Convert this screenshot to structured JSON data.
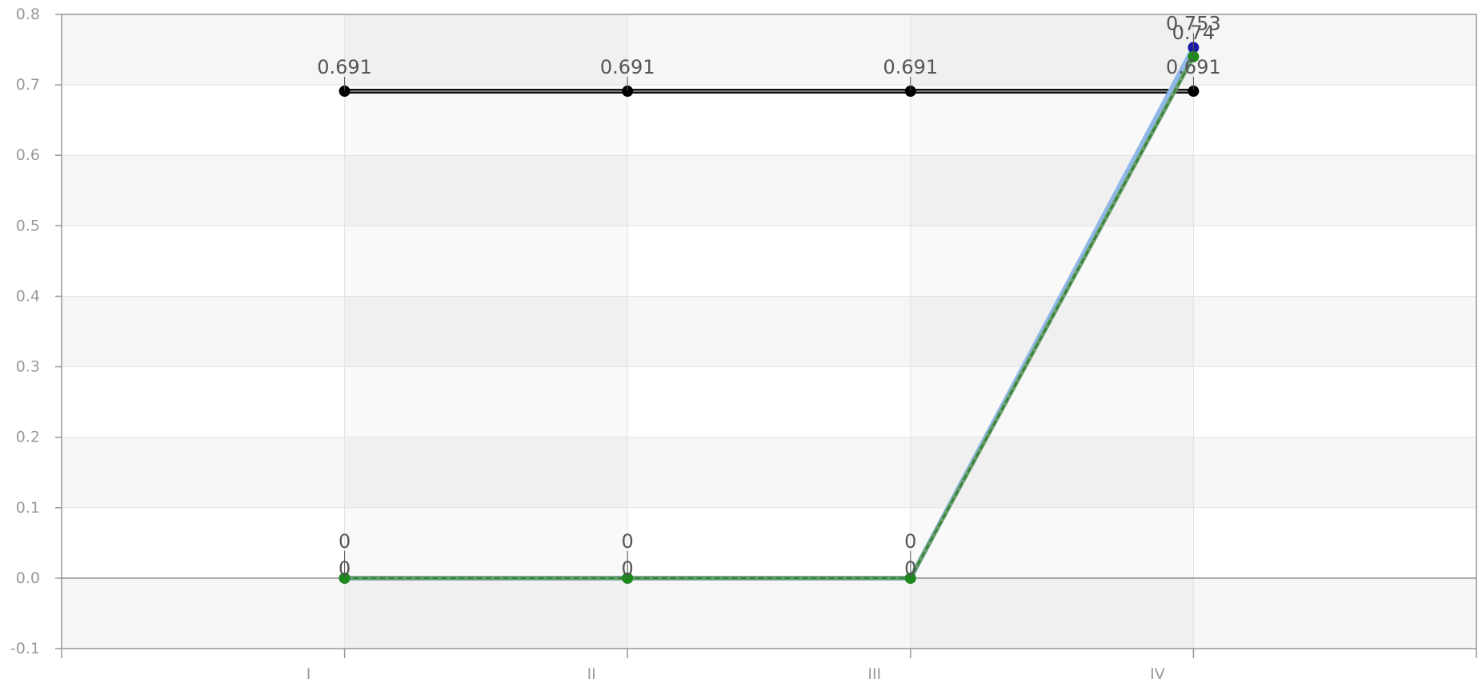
{
  "chart_data": {
    "type": "line",
    "title": "",
    "xlabel": "",
    "ylabel": "",
    "categories": [
      "I",
      "II",
      "III",
      "IV"
    ],
    "ylim": [
      -0.1,
      0.8
    ],
    "yticks": [
      "-0.1",
      "0.0",
      "0.1",
      "0.2",
      "0.3",
      "0.4",
      "0.5",
      "0.6",
      "0.7",
      "0.8"
    ],
    "grid": true,
    "legend": "none",
    "series": [
      {
        "values": [
          0.691,
          0.691,
          0.691,
          0.691
        ],
        "labels": [
          "0.691",
          "0.691",
          "0.691",
          "0.691"
        ],
        "color": "#111111",
        "marker_color": "#000000",
        "style": "solid"
      },
      {
        "values": [
          0,
          0,
          0,
          0.753
        ],
        "labels": [
          "0",
          "0",
          "0",
          "0.753"
        ],
        "color": "#8fb8e8",
        "marker_color": "#1a1aa8",
        "style": "solid"
      },
      {
        "values": [
          0,
          0,
          0,
          0.74
        ],
        "labels": [
          "0",
          "0",
          "0",
          "0.74"
        ],
        "color": "#2e7d32",
        "marker_color": "#1b8a1b",
        "style": "dashed"
      }
    ],
    "colors": {
      "band_light": "#f6f6f6",
      "band_white": "#ffffff",
      "grid": "#e2e2e2",
      "axis": "#999999"
    }
  }
}
